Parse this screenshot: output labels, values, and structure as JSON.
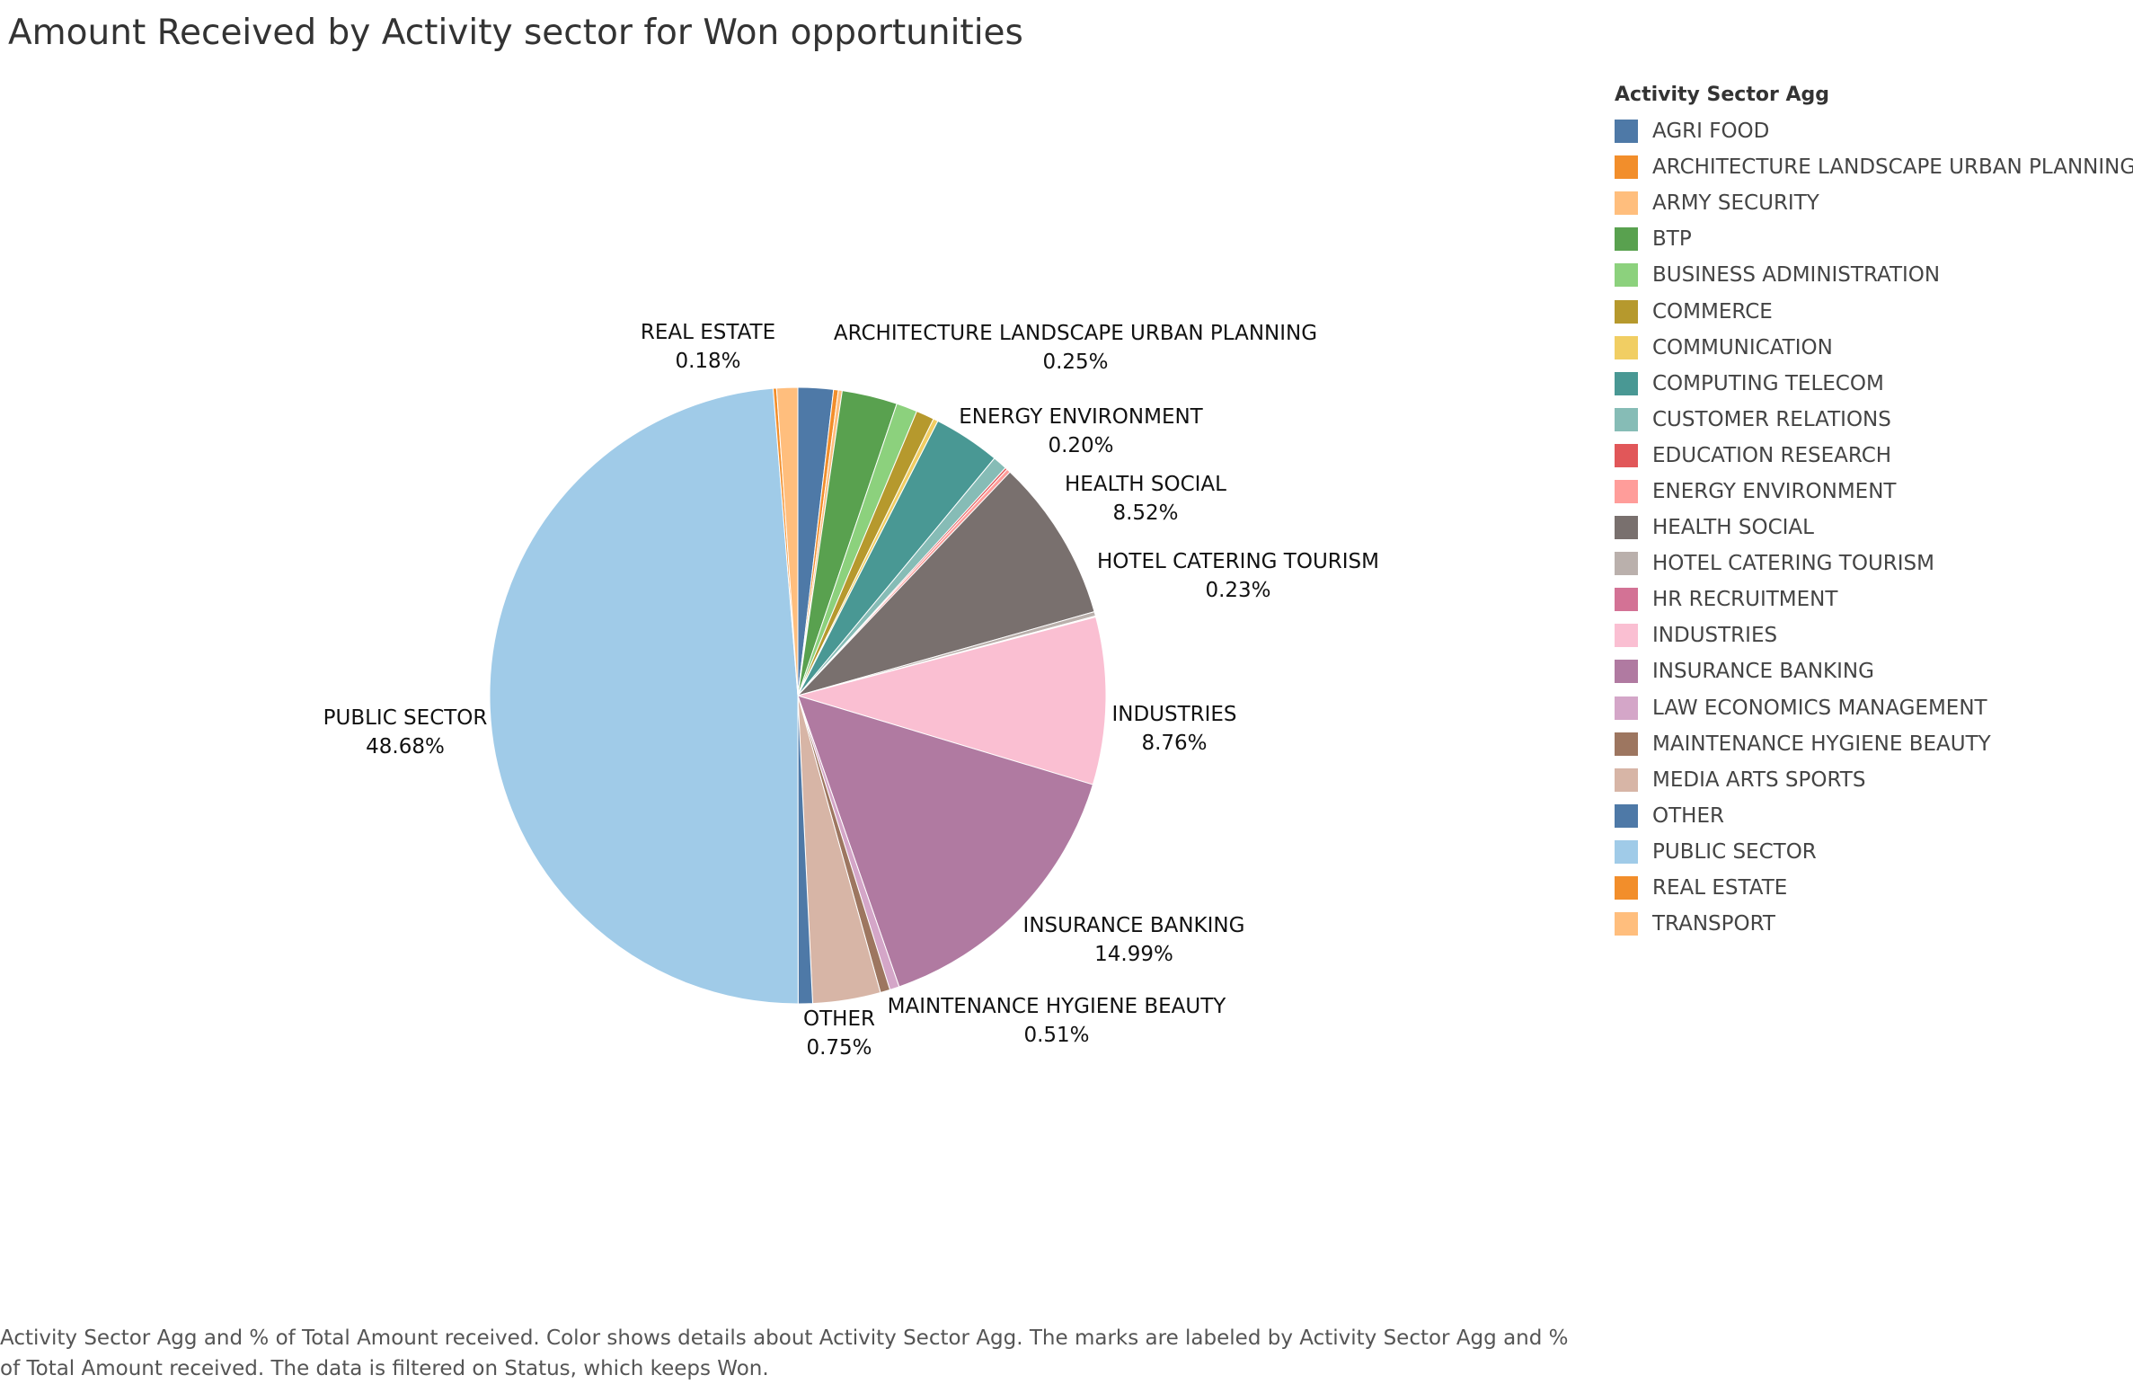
{
  "title": "Amount Received by Activity sector for Won opportunities",
  "legend": {
    "title": "Activity Sector Agg",
    "items": [
      {
        "label": "AGRI FOOD",
        "color": "#4e79a7"
      },
      {
        "label": "ARCHITECTURE LANDSCAPE URBAN PLANNING",
        "color": "#f28e2b"
      },
      {
        "label": "ARMY SECURITY",
        "color": "#ffbe7d"
      },
      {
        "label": "BTP",
        "color": "#59a14f"
      },
      {
        "label": "BUSINESS ADMINISTRATION",
        "color": "#8cd17d"
      },
      {
        "label": "COMMERCE",
        "color": "#b6992d"
      },
      {
        "label": "COMMUNICATION",
        "color": "#f1ce63"
      },
      {
        "label": "COMPUTING TELECOM",
        "color": "#499894"
      },
      {
        "label": "CUSTOMER RELATIONS",
        "color": "#86bcb6"
      },
      {
        "label": "EDUCATION RESEARCH",
        "color": "#e15759"
      },
      {
        "label": "ENERGY ENVIRONMENT",
        "color": "#ff9d9a"
      },
      {
        "label": "HEALTH SOCIAL",
        "color": "#79706e"
      },
      {
        "label": "HOTEL CATERING TOURISM",
        "color": "#bab0ac"
      },
      {
        "label": "HR RECRUITMENT",
        "color": "#d37295"
      },
      {
        "label": "INDUSTRIES",
        "color": "#fabfd2"
      },
      {
        "label": "INSURANCE BANKING",
        "color": "#b07aa1"
      },
      {
        "label": "LAW ECONOMICS MANAGEMENT",
        "color": "#d4a6c8"
      },
      {
        "label": "MAINTENANCE HYGIENE BEAUTY",
        "color": "#9d7660"
      },
      {
        "label": "MEDIA ARTS SPORTS",
        "color": "#d7b5a6"
      },
      {
        "label": "OTHER",
        "color": "#4e79a7"
      },
      {
        "label": "PUBLIC SECTOR",
        "color": "#a0cbe8"
      },
      {
        "label": "REAL ESTATE",
        "color": "#f28e2b"
      },
      {
        "label": "TRANSPORT",
        "color": "#ffbe7d"
      }
    ]
  },
  "chart_data": {
    "type": "pie",
    "title": "Amount Received by Activity sector for Won opportunities",
    "slices": [
      {
        "name": "AGRI FOOD",
        "value": 1.85,
        "color": "#4e79a7"
      },
      {
        "name": "ARCHITECTURE LANDSCAPE URBAN PLANNING",
        "value": 0.25,
        "color": "#f28e2b",
        "label": "ARCHITECTURE LANDSCAPE URBAN PLANNING",
        "pct": "0.25%"
      },
      {
        "name": "ARMY SECURITY",
        "value": 0.2,
        "color": "#ffbe7d"
      },
      {
        "name": "BTP",
        "value": 2.9,
        "color": "#59a14f"
      },
      {
        "name": "BUSINESS ADMINISTRATION",
        "value": 1.1,
        "color": "#8cd17d"
      },
      {
        "name": "COMMERCE",
        "value": 0.95,
        "color": "#b6992d"
      },
      {
        "name": "COMMUNICATION",
        "value": 0.25,
        "color": "#f1ce63"
      },
      {
        "name": "COMPUTING TELECOM",
        "value": 3.5,
        "color": "#499894"
      },
      {
        "name": "CUSTOMER RELATIONS",
        "value": 0.75,
        "color": "#86bcb6"
      },
      {
        "name": "EDUCATION RESEARCH",
        "value": 0.12,
        "color": "#e15759"
      },
      {
        "name": "ENERGY ENVIRONMENT",
        "value": 0.2,
        "color": "#ff9d9a",
        "label": "ENERGY ENVIRONMENT",
        "pct": "0.20%"
      },
      {
        "name": "HEALTH SOCIAL",
        "value": 8.52,
        "color": "#79706e",
        "label": "HEALTH SOCIAL",
        "pct": "8.52%"
      },
      {
        "name": "HOTEL CATERING TOURISM",
        "value": 0.23,
        "color": "#bab0ac",
        "label": "HOTEL CATERING TOURISM",
        "pct": "0.23%"
      },
      {
        "name": "HR RECRUITMENT",
        "value": 0.05,
        "color": "#d37295"
      },
      {
        "name": "INDUSTRIES",
        "value": 8.76,
        "color": "#fabfd2",
        "label": "INDUSTRIES",
        "pct": "8.76%"
      },
      {
        "name": "INSURANCE BANKING",
        "value": 14.99,
        "color": "#b07aa1",
        "label": "INSURANCE BANKING",
        "pct": "14.99%"
      },
      {
        "name": "LAW ECONOMICS MANAGEMENT",
        "value": 0.5,
        "color": "#d4a6c8"
      },
      {
        "name": "MAINTENANCE HYGIENE BEAUTY",
        "value": 0.51,
        "color": "#9d7660",
        "label": "MAINTENANCE HYGIENE BEAUTY",
        "pct": "0.51%"
      },
      {
        "name": "MEDIA ARTS SPORTS",
        "value": 3.55,
        "color": "#d7b5a6"
      },
      {
        "name": "OTHER",
        "value": 0.75,
        "color": "#4e79a7",
        "label": "OTHER",
        "pct": "0.75%"
      },
      {
        "name": "PUBLIC SECTOR",
        "value": 48.68,
        "color": "#a0cbe8",
        "label": "PUBLIC SECTOR",
        "pct": "48.68%"
      },
      {
        "name": "REAL ESTATE",
        "value": 0.18,
        "color": "#f28e2b",
        "label": "REAL ESTATE",
        "pct": "0.18%"
      },
      {
        "name": "TRANSPORT",
        "value": 1.1,
        "color": "#ffbe7d"
      }
    ]
  },
  "caption": "Activity Sector Agg and % of Total Amount received.  Color shows details about Activity Sector Agg.  The marks are labeled by Activity Sector Agg and % of Total Amount received. The data is filtered on Status, which keeps Won."
}
